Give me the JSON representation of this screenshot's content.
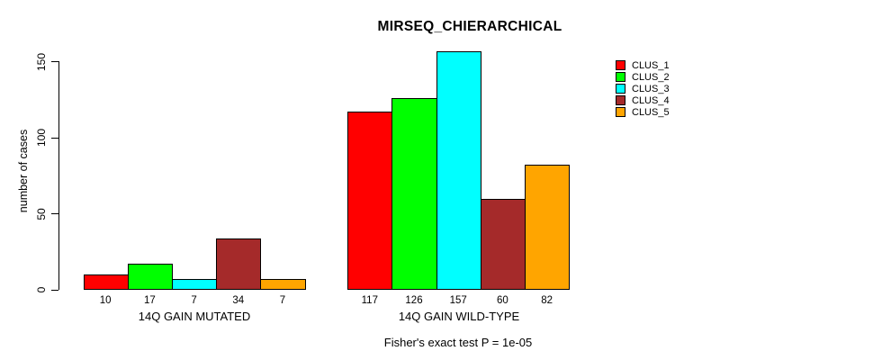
{
  "figure": {
    "background": "#ffffff",
    "text_color": "#000000"
  },
  "chart_data": {
    "type": "bar",
    "title": "MIRSEQ_CHIERARCHICAL",
    "ylabel": "number of cases",
    "xlabel": "",
    "ylim": [
      0,
      150
    ],
    "yticks": [
      0,
      50,
      100,
      150
    ],
    "grid": false,
    "legend_position": "top-right",
    "categories": [
      "14Q GAIN MUTATED",
      "14Q GAIN WILD-TYPE"
    ],
    "series": [
      {
        "name": "CLUS_1",
        "color": "#FF0000",
        "values": [
          10,
          117
        ]
      },
      {
        "name": "CLUS_2",
        "color": "#00FF00",
        "values": [
          17,
          126
        ]
      },
      {
        "name": "CLUS_3",
        "color": "#00FFFF",
        "values": [
          7,
          157
        ]
      },
      {
        "name": "CLUS_4",
        "color": "#A52A2A",
        "values": [
          34,
          60
        ]
      },
      {
        "name": "CLUS_5",
        "color": "#FFA500",
        "values": [
          7,
          82
        ]
      }
    ],
    "bar_value_labels_shown": true,
    "annotation": "Fisher's exact test P = 1e-05"
  }
}
